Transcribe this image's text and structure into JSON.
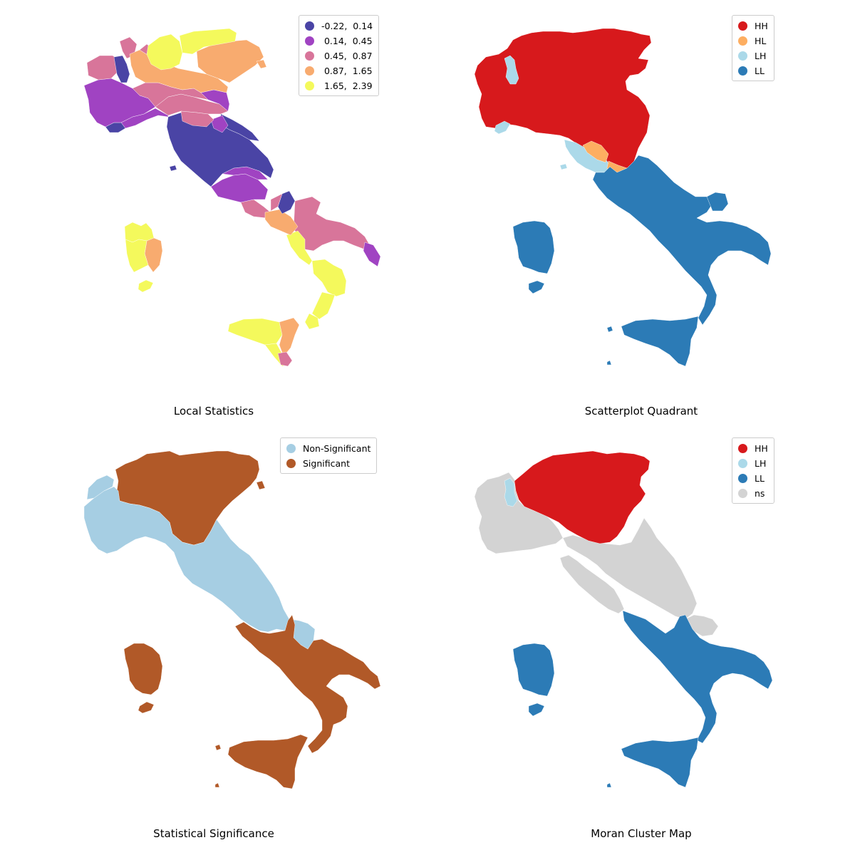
{
  "panels": [
    {
      "title": "Local Statistics",
      "legend": [
        {
          "label": "-0.22,  0.14",
          "color": "#4a44a5"
        },
        {
          "label": " 0.14,  0.45",
          "color": "#a043c2"
        },
        {
          "label": " 0.45,  0.87",
          "color": "#d8759a"
        },
        {
          "label": " 0.87,  1.65",
          "color": "#f8ab6f"
        },
        {
          "label": " 1.65,  2.39",
          "color": "#f4f95c"
        }
      ]
    },
    {
      "title": "Scatterplot Quadrant",
      "legend": [
        {
          "label": "HH",
          "color": "#d7191c"
        },
        {
          "label": "HL",
          "color": "#fdae61"
        },
        {
          "label": "LH",
          "color": "#abd9e9"
        },
        {
          "label": "LL",
          "color": "#2c7bb6"
        }
      ]
    },
    {
      "title": "Statistical Significance",
      "legend": [
        {
          "label": "Non-Significant",
          "color": "#a6cee3"
        },
        {
          "label": "Significant",
          "color": "#b15928"
        }
      ]
    },
    {
      "title": "Moran Cluster Map",
      "legend": [
        {
          "label": "HH",
          "color": "#d7191c"
        },
        {
          "label": "LH",
          "color": "#abd9e9"
        },
        {
          "label": "LL",
          "color": "#2c7bb6"
        },
        {
          "label": "ns",
          "color": "#d3d3d3"
        }
      ]
    }
  ]
}
